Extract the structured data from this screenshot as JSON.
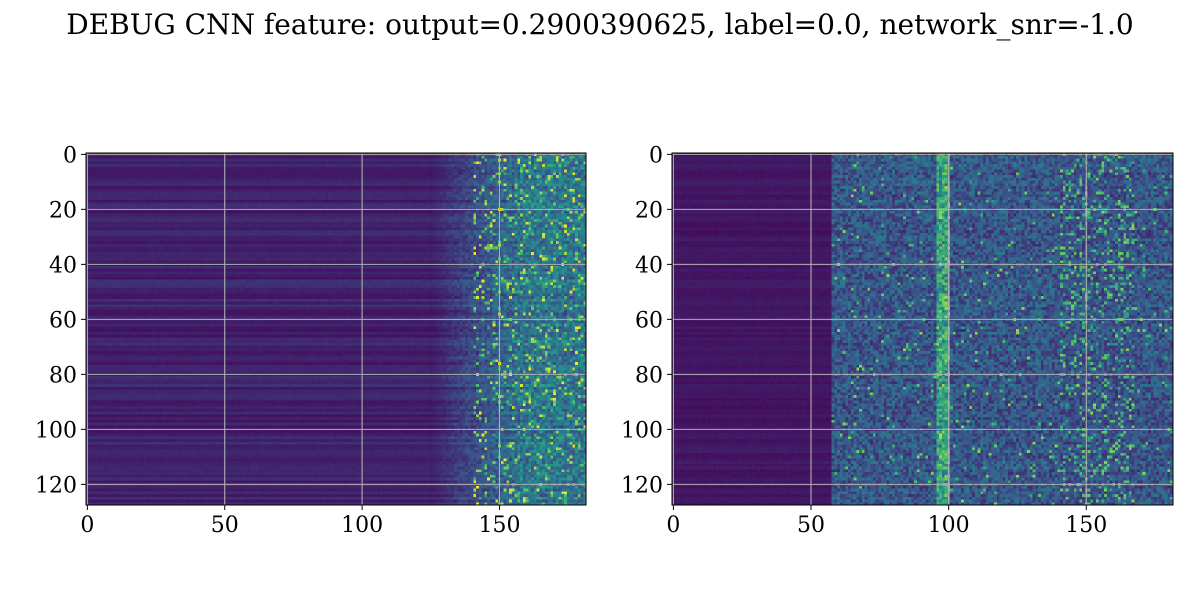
{
  "title": "DEBUG CNN feature: output=0.2900390625, label=0.0, network_snr=-1.0",
  "colors": {
    "background": "#ffffff",
    "grid": "#b0b0b0",
    "colormap": [
      "#440154",
      "#3b528b",
      "#21918c",
      "#5ec962",
      "#fde725"
    ]
  },
  "chart_data": [
    {
      "type": "heatmap",
      "panel": "left",
      "colormap": "viridis",
      "grid": true,
      "x_ticks": [
        0,
        50,
        100,
        150
      ],
      "y_ticks": [
        0,
        20,
        40,
        60,
        80,
        100,
        120
      ],
      "xlim": [
        -0.5,
        181.5
      ],
      "ylim": [
        127.5,
        -0.5
      ],
      "n_rows": 128,
      "n_cols": 182,
      "pattern": "low, row-banded values for columns 0–130; bright noisy speckles concentrated in columns 135–181"
    },
    {
      "type": "heatmap",
      "panel": "right",
      "colormap": "viridis",
      "grid": true,
      "x_ticks": [
        0,
        50,
        100,
        150
      ],
      "y_ticks": [
        0,
        20,
        40,
        60,
        80,
        100,
        120
      ],
      "xlim": [
        -0.5,
        181.5
      ],
      "ylim": [
        127.5,
        -0.5
      ],
      "n_rows": 128,
      "n_cols": 182,
      "pattern": "dark for columns 0–55; noisy moderate values from column 60 onward with a brighter vertical band near column 98 and speckles near columns 140–165"
    }
  ]
}
